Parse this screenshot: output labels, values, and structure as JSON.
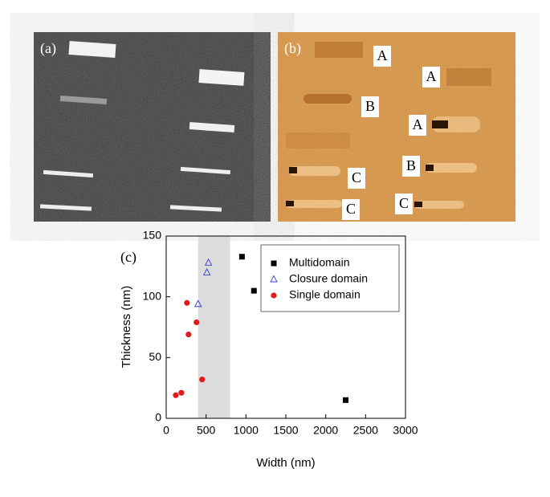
{
  "panels": [
    {
      "label": "(a)"
    },
    {
      "label": "(b)",
      "annotations": [
        "A",
        "A",
        "A",
        "B",
        "B",
        "C",
        "C",
        "C"
      ]
    }
  ],
  "chart_data": {
    "type": "scatter",
    "panel_label": "(c)",
    "x_label": "Width (nm)",
    "y_label": "Thickness (nm)",
    "xlim": [
      0,
      3000
    ],
    "ylim": [
      0,
      150
    ],
    "xticks": [
      0,
      500,
      1000,
      1500,
      2000,
      2500,
      3000
    ],
    "yticks": [
      0,
      50,
      100,
      150
    ],
    "span": [
      400,
      800
    ],
    "span_color": "#dcdcdc",
    "legend": "upper right",
    "series": [
      {
        "name": "Multidomain",
        "color": "#000000",
        "marker": "square",
        "x": [
          950,
          1100,
          2250
        ],
        "values": [
          133,
          105,
          15
        ]
      },
      {
        "name": "Closure domain",
        "color": "#3a3acc",
        "marker": "triangle-open",
        "x": [
          400,
          510,
          530
        ],
        "values": [
          94,
          120,
          128
        ]
      },
      {
        "name": "Single domain",
        "color": "#e11b1b",
        "marker": "circle",
        "x": [
          120,
          190,
          260,
          280,
          380,
          450
        ],
        "values": [
          19,
          21,
          95,
          69,
          79,
          32
        ]
      }
    ]
  }
}
